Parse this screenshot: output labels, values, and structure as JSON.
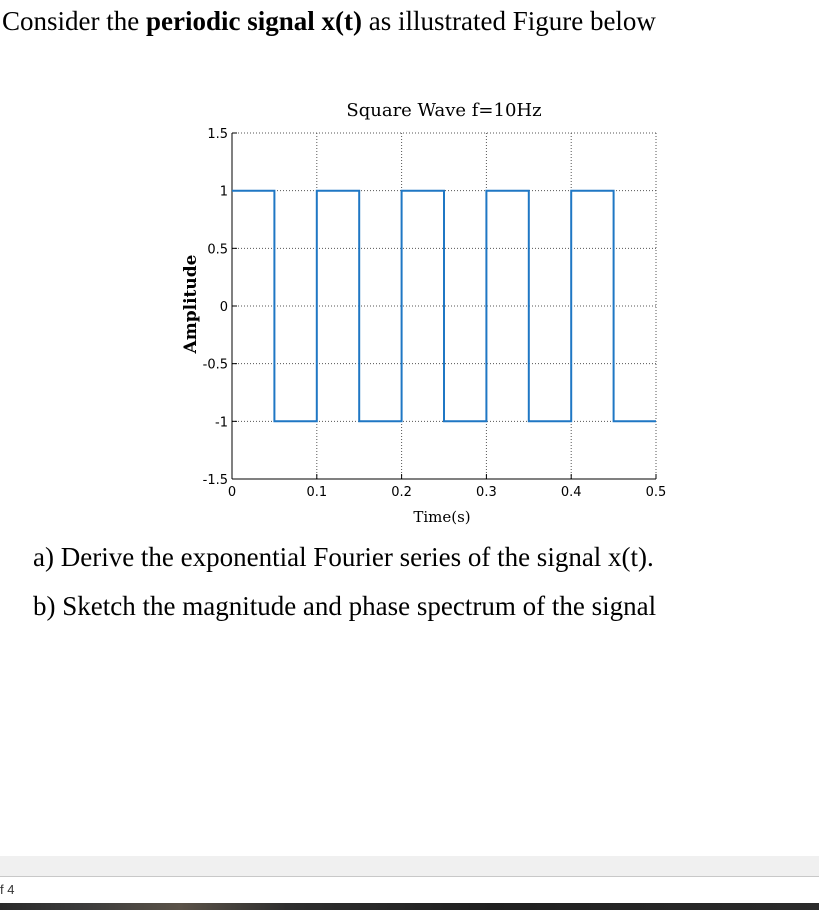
{
  "problem": {
    "intro_plain_1": "Consider the ",
    "intro_bold_1": "periodic signal x(t)",
    "intro_plain_2": " as illustrated Figure below",
    "question_a": "a) Derive the exponential Fourier series of the signal x(t).",
    "question_b": "b) Sketch the magnitude and phase spectrum of the signal"
  },
  "chart_data": {
    "type": "line",
    "title": "Square Wave f=10Hz",
    "xlabel": "Time(s)",
    "ylabel": "Amplitude",
    "xlim": [
      0,
      0.5
    ],
    "ylim": [
      -1.5,
      1.5
    ],
    "xticks": [
      0,
      0.1,
      0.2,
      0.3,
      0.4,
      0.5
    ],
    "xtick_labels": [
      "0",
      "0.1",
      "0.2",
      "0.3",
      "0.4",
      "0.5"
    ],
    "yticks": [
      1.5,
      1,
      0.5,
      0,
      -0.5,
      -1,
      -1.5
    ],
    "ytick_labels": [
      "1.5",
      "1",
      "0.5",
      "0",
      "-0.5",
      "-1",
      "-1.5"
    ],
    "grid": true,
    "grid_style": "dotted",
    "line_color": "#1f77c4",
    "x": [
      0,
      0.05,
      0.05,
      0.1,
      0.1,
      0.15,
      0.15,
      0.2,
      0.2,
      0.25,
      0.25,
      0.3,
      0.3,
      0.35,
      0.35,
      0.4,
      0.4,
      0.45,
      0.45,
      0.5
    ],
    "y": [
      1,
      1,
      -1,
      -1,
      1,
      1,
      -1,
      -1,
      1,
      1,
      -1,
      -1,
      1,
      1,
      -1,
      -1,
      1,
      1,
      -1,
      -1
    ]
  },
  "status_bar": {
    "page_indicator": "f 4"
  }
}
